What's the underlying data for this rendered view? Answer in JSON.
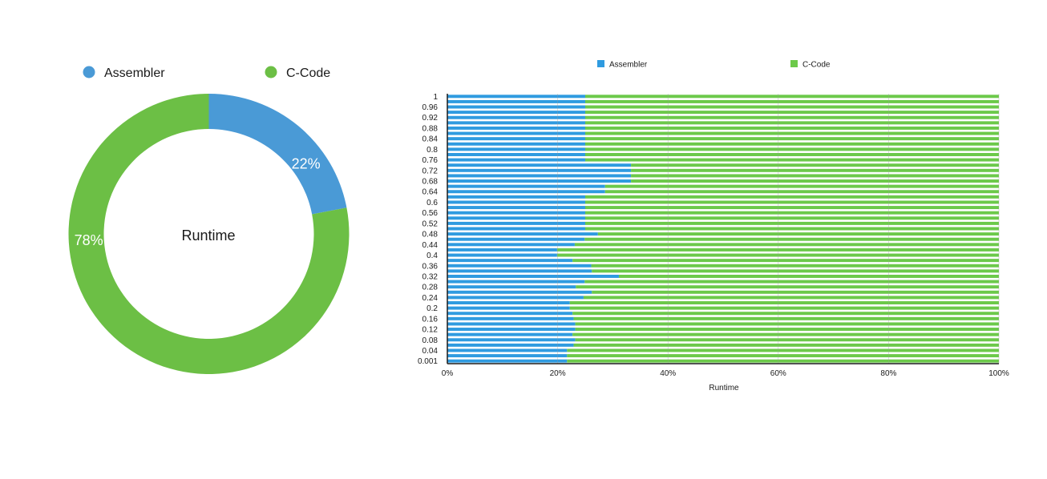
{
  "chart_data": [
    {
      "type": "pie",
      "donut": true,
      "center_label": "Runtime",
      "legend_position": "top",
      "slices": [
        {
          "name": "Assembler",
          "value": 22,
          "label": "22%"
        },
        {
          "name": "C-Code",
          "value": 78,
          "label": "78%"
        }
      ],
      "colors": {
        "Assembler": "#4a9ad6",
        "C-Code": "#6cbf45"
      }
    },
    {
      "type": "bar",
      "orientation": "horizontal",
      "stacked": "percent",
      "xlabel": "Runtime",
      "ylabel": "",
      "xlim": [
        0,
        100
      ],
      "x_ticks": [
        "0%",
        "20%",
        "40%",
        "60%",
        "80%",
        "100%"
      ],
      "grid": true,
      "legend_position": "top",
      "categories": [
        "0.001",
        "0.02",
        "0.04",
        "0.06",
        "0.08",
        "0.1",
        "0.12",
        "0.14",
        "0.16",
        "0.18",
        "0.2",
        "0.22",
        "0.24",
        "0.26",
        "0.28",
        "0.3",
        "0.32",
        "0.34",
        "0.36",
        "0.38",
        "0.4",
        "0.42",
        "0.44",
        "0.46",
        "0.48",
        "0.5",
        "0.52",
        "0.54",
        "0.56",
        "0.58",
        "0.6",
        "0.62",
        "0.64",
        "0.66",
        "0.68",
        "0.7",
        "0.72",
        "0.74",
        "0.76",
        "0.78",
        "0.8",
        "0.82",
        "0.84",
        "0.86",
        "0.88",
        "0.9",
        "0.92",
        "0.94",
        "0.96",
        "0.98",
        "1"
      ],
      "tick_categories": [
        "0.001",
        "0.04",
        "0.08",
        "0.12",
        "0.16",
        "0.2",
        "0.24",
        "0.28",
        "0.32",
        "0.36",
        "0.4",
        "0.44",
        "0.48",
        "0.52",
        "0.56",
        "0.6",
        "0.64",
        "0.68",
        "0.72",
        "0.76",
        "0.8",
        "0.84",
        "0.88",
        "0.92",
        "0.96",
        "1"
      ],
      "series": [
        {
          "name": "Assembler",
          "values": [
            21.7,
            21.7,
            21.7,
            22.9,
            23.2,
            22.7,
            23.2,
            23.2,
            22.9,
            22.7,
            22.2,
            22.2,
            24.7,
            26.2,
            23.3,
            24.9,
            31.1,
            26.2,
            26.1,
            22.7,
            19.9,
            19.9,
            23.1,
            24.9,
            27.3,
            25.0,
            25.0,
            25.0,
            25.0,
            25.0,
            25.0,
            25.0,
            28.6,
            28.6,
            33.3,
            33.3,
            33.3,
            33.3,
            25.0,
            25.0,
            25.0,
            25.0,
            25.0,
            25.0,
            25.0,
            25.0,
            25.0,
            25.0,
            25.0,
            25.0,
            25.0
          ]
        },
        {
          "name": "C-Code",
          "values": [
            78.3,
            78.3,
            78.3,
            77.1,
            76.8,
            77.3,
            76.8,
            76.8,
            77.1,
            77.3,
            77.8,
            77.8,
            75.3,
            73.8,
            76.7,
            75.1,
            68.9,
            73.8,
            73.9,
            77.3,
            80.1,
            80.1,
            76.9,
            75.1,
            72.7,
            75.0,
            75.0,
            75.0,
            75.0,
            75.0,
            75.0,
            75.0,
            71.4,
            71.4,
            66.7,
            66.7,
            66.7,
            66.7,
            75.0,
            75.0,
            75.0,
            75.0,
            75.0,
            75.0,
            75.0,
            75.0,
            75.0,
            75.0,
            75.0,
            75.0,
            75.0
          ]
        }
      ],
      "colors": {
        "Assembler": "#2f9be0",
        "C-Code": "#6cc94a"
      }
    }
  ]
}
